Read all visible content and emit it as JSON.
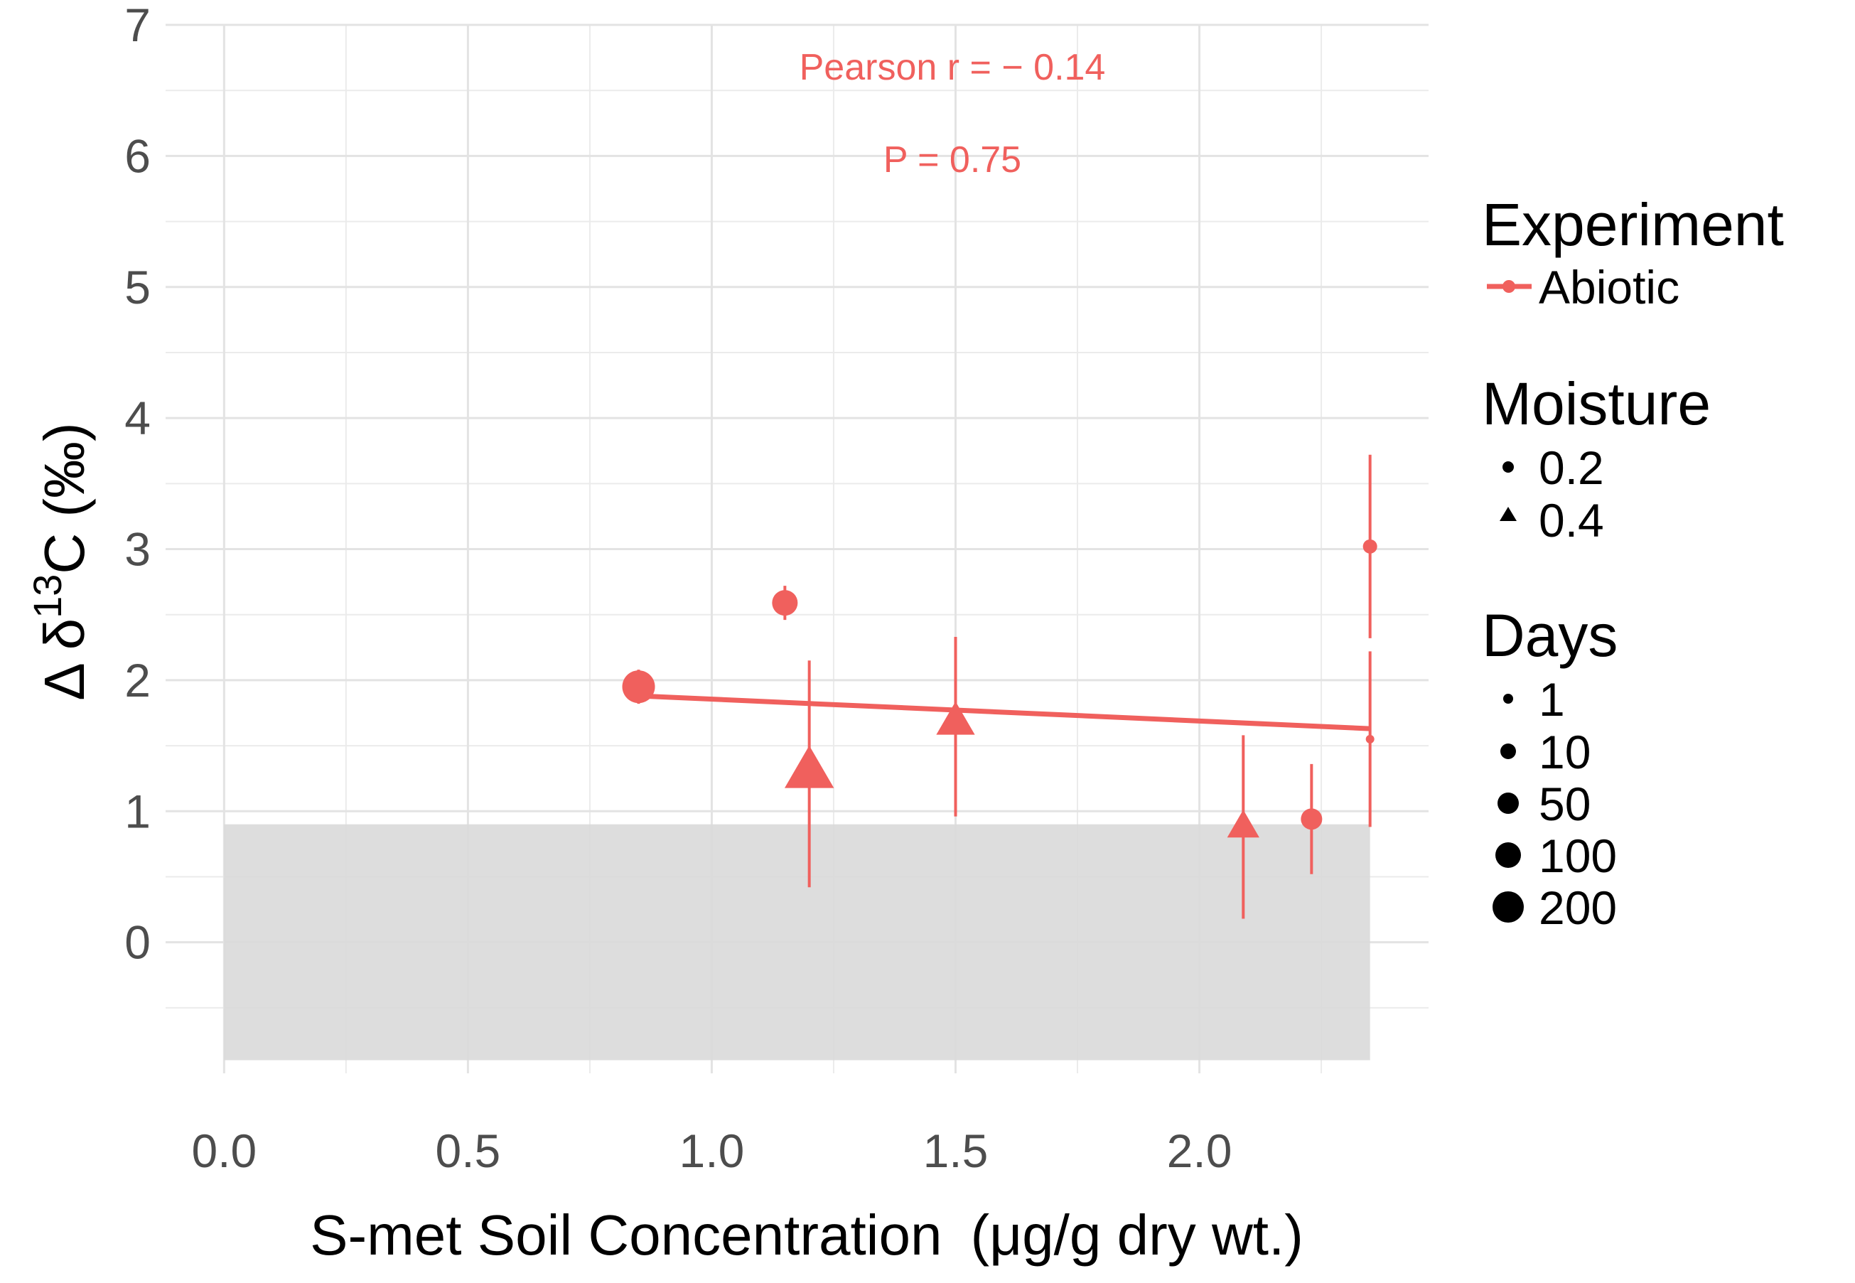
{
  "chart_data": {
    "type": "scatter",
    "xlabel_main": "S-met Soil Concentration",
    "xlabel_units": "(μg/g dry wt.)",
    "ylabel_prefix": "Δ δ",
    "ylabel_sup": "13",
    "ylabel_suffix": "C (‰)",
    "xlim": [
      -0.12,
      2.47
    ],
    "ylim": [
      -1.0,
      7.0
    ],
    "x_ticks": [
      0.0,
      0.5,
      1.0,
      1.5,
      2.0
    ],
    "x_tick_labels": [
      "0.0",
      "0.5",
      "1.0",
      "1.5",
      "2.0"
    ],
    "y_ticks": [
      0,
      1,
      2,
      3,
      4,
      5,
      6,
      7
    ],
    "y_tick_labels": [
      "0",
      "1",
      "2",
      "3",
      "4",
      "5",
      "6",
      "7"
    ],
    "grid": true,
    "shaded_band": {
      "x": [
        0.0,
        2.35
      ],
      "y": [
        -0.9,
        0.9
      ],
      "color": "#d9d9d9"
    },
    "series": [
      {
        "name": "Abiotic",
        "color": "#f0605d",
        "points": [
          {
            "x": 0.85,
            "y": 1.95,
            "ymin": 1.82,
            "ymax": 2.08,
            "moisture": 0.2,
            "days": 200
          },
          {
            "x": 1.15,
            "y": 2.59,
            "ymin": 2.46,
            "ymax": 2.72,
            "moisture": 0.2,
            "days": 100
          },
          {
            "x": 1.2,
            "y": 1.3,
            "ymin": 0.42,
            "ymax": 2.15,
            "moisture": 0.4,
            "days": 200
          },
          {
            "x": 1.5,
            "y": 1.68,
            "ymin": 0.96,
            "ymax": 2.33,
            "moisture": 0.4,
            "days": 100
          },
          {
            "x": 2.09,
            "y": 0.88,
            "ymin": 0.18,
            "ymax": 1.58,
            "moisture": 0.4,
            "days": 50
          },
          {
            "x": 2.23,
            "y": 0.94,
            "ymin": 0.52,
            "ymax": 1.36,
            "moisture": 0.2,
            "days": 50
          },
          {
            "x": 2.35,
            "y": 3.02,
            "ymin": 2.32,
            "ymax": 3.72,
            "moisture": 0.2,
            "days": 10
          },
          {
            "x": 2.35,
            "y": 1.55,
            "ymin": 0.88,
            "ymax": 2.22,
            "moisture": 0.2,
            "days": 1
          }
        ],
        "fit_line": {
          "x": [
            0.85,
            2.35
          ],
          "y": [
            1.88,
            1.63
          ]
        }
      }
    ],
    "annotations": [
      "Pearson r = − 0.14",
      "P = 0.75"
    ],
    "legend": {
      "placement": "right",
      "experiment": {
        "title": "Experiment",
        "items": [
          "Abiotic"
        ]
      },
      "moisture": {
        "title": "Moisture",
        "items": [
          "0.2",
          "0.4"
        ]
      },
      "days": {
        "title": "Days",
        "items": [
          "1",
          "10",
          "50",
          "100",
          "200"
        ]
      }
    }
  }
}
